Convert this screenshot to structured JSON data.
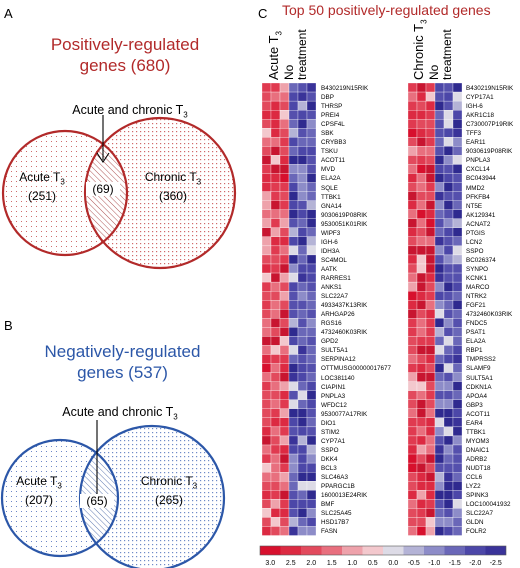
{
  "panelA": {
    "letter": "A",
    "title_line1": "Positively-regulated",
    "title_line2": "genes (680)",
    "overlap_label": "Acute and chronic T",
    "overlap_sub": "3",
    "left_label": "Acute T",
    "left_sub": "3",
    "left_count": "(251)",
    "mid_count": "(69)",
    "right_label": "Chronic T",
    "right_sub": "3",
    "right_count": "(360)",
    "color": "#b22a2a"
  },
  "panelB": {
    "letter": "B",
    "title_line1": "Negatively-regulated",
    "title_line2": "genes (537)",
    "overlap_label": "Acute and chronic T",
    "overlap_sub": "3",
    "left_label": "Acute T",
    "left_sub": "3",
    "left_count": "(207)",
    "mid_count": "(65)",
    "right_label": "Chronic T",
    "right_sub": "3",
    "right_count": "(265)",
    "color": "#2c57a8"
  },
  "panelC": {
    "letter": "C",
    "title": "Top 50 positively-regulated genes",
    "left_col1": "Acute T",
    "left_col1_sub": "3",
    "left_col2a": "No",
    "left_col2b": "treatment",
    "right_col1": "Chronic T",
    "right_col1_sub": "3",
    "right_col2a": "No",
    "right_col2b": "treatment",
    "scale_labels": [
      "3.0",
      "2.5",
      "2.0",
      "1.5",
      "1.0",
      "0.5",
      "0.0",
      "-0.5",
      "-1.0",
      "-1.5",
      "-2.0",
      "-2.5"
    ],
    "scale_colors": [
      "#d7102d",
      "#dc2a42",
      "#e24a5d",
      "#e86f7e",
      "#eea2ab",
      "#f3c8cd",
      "#dddbe6",
      "#b4b3d6",
      "#8d8cc8",
      "#6a67b8",
      "#4c47a8",
      "#3a3399"
    ]
  },
  "genes_left": [
    {
      "n": "B430219N15RIK",
      "s": "u"
    },
    {
      "n": "DBP",
      "s": ""
    },
    {
      "n": "THRSP",
      "s": "b"
    },
    {
      "n": "PREI4",
      "s": ""
    },
    {
      "n": "CPSF4L",
      "s": ""
    },
    {
      "n": "SBK",
      "s": "u"
    },
    {
      "n": "CRYBB3",
      "s": "u"
    },
    {
      "n": "TSKU",
      "s": ""
    },
    {
      "n": "ACOT11",
      "s": "u"
    },
    {
      "n": "MVD",
      "s": "u"
    },
    {
      "n": "ELA2A",
      "s": "u"
    },
    {
      "n": "SQLE",
      "s": "u"
    },
    {
      "n": "TTBK1",
      "s": "u"
    },
    {
      "n": "GNA14",
      "s": ""
    },
    {
      "n": "9030619P08RIK",
      "s": "u"
    },
    {
      "n": "9530051K01RIK",
      "s": ""
    },
    {
      "n": "WIPF3",
      "s": ""
    },
    {
      "n": "IGH-6",
      "s": "u"
    },
    {
      "n": "IDH3A",
      "s": "ub"
    },
    {
      "n": "SC4MOL",
      "s": "u"
    },
    {
      "n": "AATK",
      "s": ""
    },
    {
      "n": "RARRES1",
      "s": "u"
    },
    {
      "n": "ANKS1",
      "s": "u"
    },
    {
      "n": "SLC22A7",
      "s": "u"
    },
    {
      "n": "4933437K13RIK",
      "s": ""
    },
    {
      "n": "ARHGAP26",
      "s": ""
    },
    {
      "n": "RGS16",
      "s": ""
    },
    {
      "n": "4732460K03RIK",
      "s": "u"
    },
    {
      "n": "GPD2",
      "s": "u"
    },
    {
      "n": "SULT5A1",
      "s": "u"
    },
    {
      "n": "SERPINA12",
      "s": ""
    },
    {
      "n": "OTTMUSG00000017677",
      "s": "u"
    },
    {
      "n": "LOC381140",
      "s": ""
    },
    {
      "n": "CIAPIN1",
      "s": ""
    },
    {
      "n": "PNPLA3",
      "s": "u"
    },
    {
      "n": "WFDC12",
      "s": ""
    },
    {
      "n": "9530077A17RIK",
      "s": ""
    },
    {
      "n": "DIO1",
      "s": "ub"
    },
    {
      "n": "STIM2",
      "s": ""
    },
    {
      "n": "CYP7A1",
      "s": "u"
    },
    {
      "n": "SSPO",
      "s": "u"
    },
    {
      "n": "DKK4",
      "s": ""
    },
    {
      "n": "BCL3",
      "s": "b"
    },
    {
      "n": "SLC46A3",
      "s": ""
    },
    {
      "n": "PPARGC1B",
      "s": ""
    },
    {
      "n": "1600013E24RIK",
      "s": "u"
    },
    {
      "n": "BMF",
      "s": ""
    },
    {
      "n": "SLC25A45",
      "s": "u"
    },
    {
      "n": "HSD17B7",
      "s": "u"
    },
    {
      "n": "FASN",
      "s": "b"
    }
  ],
  "genes_right": [
    {
      "n": "B430219N15RIK",
      "s": "u"
    },
    {
      "n": "CYP17A1",
      "s": "ub"
    },
    {
      "n": "IGH-6",
      "s": "u"
    },
    {
      "n": "AKR1C18",
      "s": ""
    },
    {
      "n": "C730007P19RIK",
      "s": ""
    },
    {
      "n": "TFF3",
      "s": ""
    },
    {
      "n": "EAR11",
      "s": ""
    },
    {
      "n": "9030619P08RIK",
      "s": "u"
    },
    {
      "n": "PNPLA3",
      "s": "u"
    },
    {
      "n": "CXCL14",
      "s": ""
    },
    {
      "n": "BC043944",
      "s": ""
    },
    {
      "n": "MMD2",
      "s": ""
    },
    {
      "n": "PFKFB4",
      "s": ""
    },
    {
      "n": "NT5E",
      "s": ""
    },
    {
      "n": "AK129341",
      "s": "u"
    },
    {
      "n": "ACNAT2",
      "s": ""
    },
    {
      "n": "PTGIS",
      "s": "u"
    },
    {
      "n": "LCN2",
      "s": ""
    },
    {
      "n": "SSPO",
      "s": "u"
    },
    {
      "n": "BC026374",
      "s": "u"
    },
    {
      "n": "SYNPO",
      "s": "u"
    },
    {
      "n": "KCNK1",
      "s": ""
    },
    {
      "n": "MARCO",
      "s": ""
    },
    {
      "n": "NTRK2",
      "s": ""
    },
    {
      "n": "FGF21",
      "s": "b"
    },
    {
      "n": "4732460K03RIK",
      "s": "u"
    },
    {
      "n": "FNDC5",
      "s": "u"
    },
    {
      "n": "PSAT1",
      "s": ""
    },
    {
      "n": "ELA2A",
      "s": "u"
    },
    {
      "n": "RBP1",
      "s": ""
    },
    {
      "n": "TMPRSS2",
      "s": "u"
    },
    {
      "n": "SLAMF9",
      "s": ""
    },
    {
      "n": "SULT5A1",
      "s": "u"
    },
    {
      "n": "CDKN1A",
      "s": ""
    },
    {
      "n": "APOA4",
      "s": ""
    },
    {
      "n": "GBP3",
      "s": ""
    },
    {
      "n": "ACOT11",
      "s": "u"
    },
    {
      "n": "EAR4",
      "s": ""
    },
    {
      "n": "TTBK1",
      "s": "u"
    },
    {
      "n": "MYOM3",
      "s": ""
    },
    {
      "n": "DNAIC1",
      "s": ""
    },
    {
      "n": "ADRB2",
      "s": ""
    },
    {
      "n": "NUDT18",
      "s": ""
    },
    {
      "n": "CCL6",
      "s": ""
    },
    {
      "n": "LYZ2",
      "s": ""
    },
    {
      "n": "SPINK3",
      "s": ""
    },
    {
      "n": "LOC100041932",
      "s": ""
    },
    {
      "n": "SLC22A7",
      "s": "u"
    },
    {
      "n": "GLDN",
      "s": ""
    },
    {
      "n": "FOLR2",
      "s": ""
    }
  ]
}
